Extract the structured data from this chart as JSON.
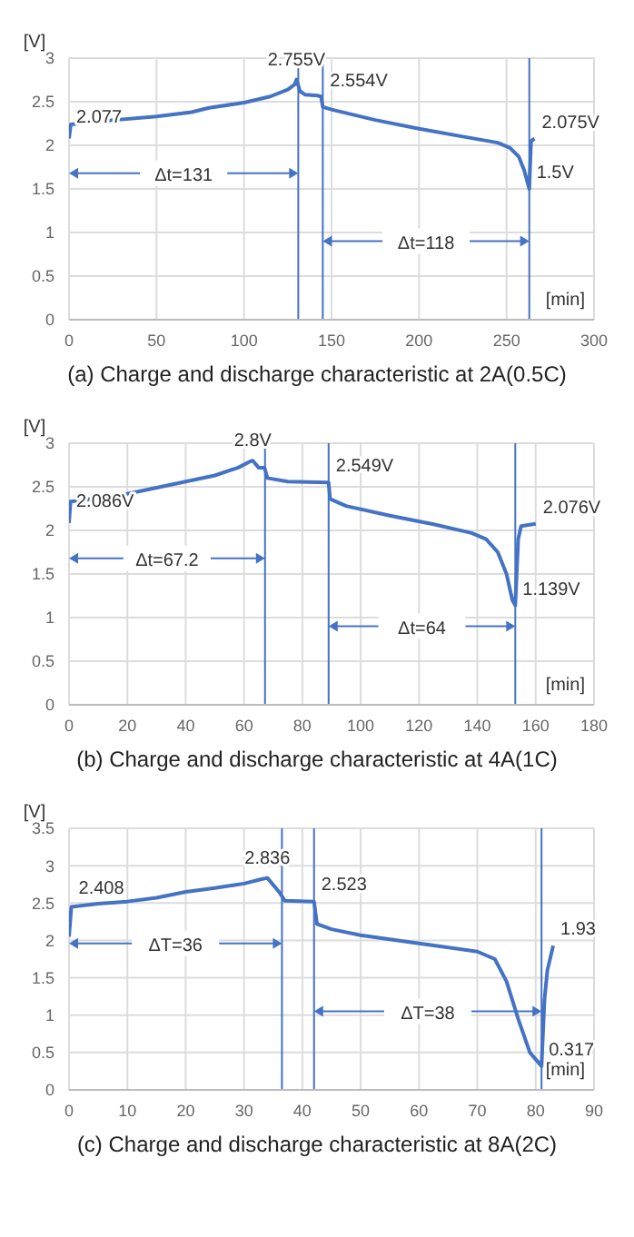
{
  "chart_data": [
    {
      "type": "line",
      "title": "(a) Charge and discharge characteristic at 2A(0.5C)",
      "xlabel": "[min]",
      "ylabel": "[V]",
      "xlim": [
        0,
        300
      ],
      "xticks": [
        0,
        50,
        100,
        150,
        200,
        250,
        300
      ],
      "ylim": [
        0,
        3
      ],
      "yticks": [
        0,
        0.5,
        1,
        1.5,
        2,
        2.5,
        3
      ],
      "grid": true,
      "series": [
        {
          "color": "#4472c4",
          "x": [
            0,
            1,
            20,
            50,
            70,
            80,
            100,
            115,
            125,
            129,
            130,
            132,
            135,
            142,
            144,
            145,
            150,
            175,
            200,
            225,
            245,
            252,
            257,
            260,
            263,
            264,
            266
          ],
          "values": [
            2.077,
            2.24,
            2.28,
            2.33,
            2.38,
            2.43,
            2.49,
            2.56,
            2.64,
            2.7,
            2.755,
            2.62,
            2.58,
            2.57,
            2.56,
            2.44,
            2.41,
            2.29,
            2.19,
            2.1,
            2.03,
            1.97,
            1.87,
            1.72,
            1.5,
            2.05,
            2.075
          ]
        }
      ],
      "ref_lines": [
        {
          "axis": "x",
          "value": 131
        },
        {
          "axis": "x",
          "value": 145
        },
        {
          "axis": "x",
          "value": 263
        }
      ],
      "annotations": [
        {
          "text": "2.077",
          "x": 0,
          "y": 2.077
        },
        {
          "text": "2.755V",
          "x": 130,
          "y": 2.755
        },
        {
          "text": "2.554V",
          "x": 145,
          "y": 2.554
        },
        {
          "text": "2.075V",
          "x": 266,
          "y": 2.075
        },
        {
          "text": "1.5V",
          "x": 263,
          "y": 1.5
        },
        "Δt=131",
        "Δt=118"
      ]
    },
    {
      "type": "line",
      "title": "(b) Charge and discharge characteristic at 4A(1C)",
      "xlabel": "[min]",
      "ylabel": "[V]",
      "xlim": [
        0,
        180
      ],
      "xticks": [
        0,
        20,
        40,
        60,
        80,
        100,
        120,
        140,
        160,
        180
      ],
      "ylim": [
        0,
        3
      ],
      "yticks": [
        0,
        0.5,
        1,
        1.5,
        2,
        2.5,
        3
      ],
      "grid": true,
      "series": [
        {
          "color": "#4472c4",
          "x": [
            0,
            0.5,
            10,
            20,
            30,
            40,
            50,
            58,
            62,
            63,
            65,
            67,
            68,
            75,
            89,
            89.5,
            95,
            110,
            125,
            138,
            143,
            147,
            150,
            152,
            153,
            154,
            155,
            160
          ],
          "values": [
            2.086,
            2.33,
            2.37,
            2.42,
            2.49,
            2.56,
            2.63,
            2.72,
            2.79,
            2.8,
            2.72,
            2.72,
            2.6,
            2.56,
            2.549,
            2.36,
            2.28,
            2.17,
            2.07,
            1.97,
            1.9,
            1.75,
            1.5,
            1.2,
            1.139,
            1.9,
            2.05,
            2.076
          ]
        }
      ],
      "ref_lines": [
        {
          "axis": "x",
          "value": 67.2
        },
        {
          "axis": "x",
          "value": 89
        },
        {
          "axis": "x",
          "value": 153
        }
      ],
      "annotations": [
        {
          "text": "2.086V",
          "x": 0,
          "y": 2.086
        },
        {
          "text": "2.8V",
          "x": 63,
          "y": 2.8
        },
        {
          "text": "2.549V",
          "x": 89,
          "y": 2.549
        },
        {
          "text": "2.076V",
          "x": 160,
          "y": 2.076
        },
        {
          "text": "1.139V",
          "x": 153,
          "y": 1.139
        },
        "Δt=67.2",
        "Δt=64"
      ]
    },
    {
      "type": "line",
      "title": "(c) Charge and discharge characteristic at 8A(2C)",
      "xlabel": "[min]",
      "ylabel": "[V]",
      "xlim": [
        0,
        90
      ],
      "xticks": [
        0,
        10,
        20,
        30,
        40,
        50,
        60,
        70,
        80,
        90
      ],
      "ylim": [
        0,
        3.5
      ],
      "yticks": [
        0,
        0.5,
        1,
        1.5,
        2,
        2.5,
        3,
        3.5
      ],
      "grid": true,
      "series": [
        {
          "color": "#4472c4",
          "x": [
            0,
            0.4,
            5,
            10,
            15,
            20,
            25,
            30,
            33,
            34,
            36,
            37,
            42,
            42.5,
            45,
            50,
            60,
            70,
            73,
            75,
            77,
            79,
            81,
            81.5,
            82,
            83
          ],
          "values": [
            2.05,
            2.45,
            2.49,
            2.52,
            2.57,
            2.65,
            2.7,
            2.76,
            2.82,
            2.836,
            2.65,
            2.53,
            2.52,
            2.22,
            2.15,
            2.07,
            1.96,
            1.85,
            1.75,
            1.45,
            0.95,
            0.5,
            0.317,
            1.2,
            1.6,
            1.93
          ]
        }
      ],
      "ref_lines": [
        {
          "axis": "x",
          "value": 36.5
        },
        {
          "axis": "x",
          "value": 42
        },
        {
          "axis": "x",
          "value": 81
        }
      ],
      "annotations": [
        {
          "text": "2.408",
          "x": 0.4,
          "y": 2.408
        },
        {
          "text": "2.836",
          "x": 34,
          "y": 2.836
        },
        {
          "text": "2.523",
          "x": 42,
          "y": 2.523
        },
        {
          "text": "1.93",
          "x": 83,
          "y": 1.93
        },
        {
          "text": "0.317",
          "x": 81,
          "y": 0.317
        },
        "ΔT=36",
        "ΔT=38"
      ]
    }
  ]
}
